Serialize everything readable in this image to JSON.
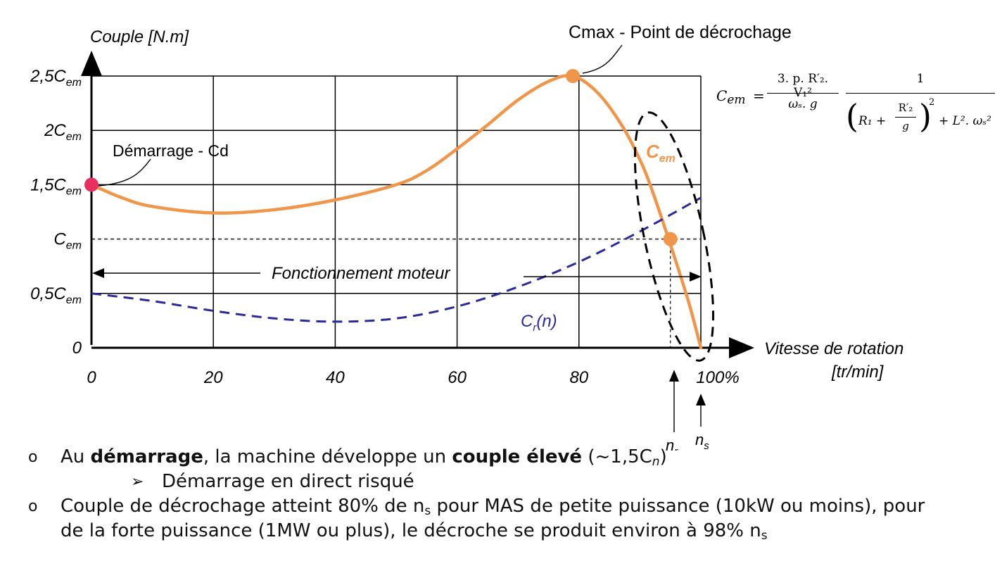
{
  "chart_data": {
    "type": "line",
    "ylabel": "Couple [N.m]",
    "xlabel_line1": "Vitesse de rotation",
    "xlabel_line2": "[tr/min]",
    "x_ticks": [
      "0",
      "20",
      "40",
      "60",
      "80",
      "100%"
    ],
    "y_tick_labels": [
      {
        "main": "0",
        "sub": ""
      },
      {
        "main": "0,5C",
        "sub": "em"
      },
      {
        "main": "C",
        "sub": "em"
      },
      {
        "main": "1,5C",
        "sub": "em"
      },
      {
        "main": "2C",
        "sub": "em"
      },
      {
        "main": "2,5C",
        "sub": "em"
      }
    ],
    "xlim": [
      0,
      100
    ],
    "ylim": [
      0,
      2.5
    ],
    "grid": true,
    "series": [
      {
        "label_main": "C",
        "label_sub": "em",
        "color": "#f0964a",
        "style": "solid",
        "x": [
          0,
          5,
          10,
          20,
          30,
          40,
          50,
          55,
          60,
          65,
          70,
          75,
          79,
          83,
          87,
          90,
          92,
          95,
          98,
          100
        ],
        "y": [
          1.5,
          1.38,
          1.3,
          1.24,
          1.27,
          1.36,
          1.5,
          1.63,
          1.83,
          2.05,
          2.28,
          2.45,
          2.5,
          2.35,
          2.05,
          1.73,
          1.45,
          0.95,
          0.42,
          0.0
        ]
      },
      {
        "label_main": "C",
        "label_sub": "r",
        "label_suffix": "(n)",
        "color": "#2a2a9c",
        "style": "dashed",
        "x": [
          0,
          10,
          20,
          30,
          40,
          50,
          60,
          70,
          80,
          90,
          100
        ],
        "y": [
          0.5,
          0.43,
          0.34,
          0.27,
          0.24,
          0.27,
          0.38,
          0.56,
          0.79,
          1.07,
          1.38
        ]
      }
    ],
    "points": [
      {
        "x": 0,
        "y": 1.5,
        "color": "#e8305e"
      },
      {
        "x": 79,
        "y": 2.5,
        "color": "#f0964a"
      },
      {
        "x": 95,
        "y": 1.0,
        "color": "#f0964a"
      }
    ],
    "cem_level": 1.0,
    "annotations": {
      "cmax": "Cmax - Point de décrochage",
      "demarrage": "Démarrage - Cd",
      "fonctionnement": "Fonctionnement moteur",
      "nr_main": "n",
      "nr_sub": "r",
      "ns_main": "n",
      "ns_sub": "s"
    }
  },
  "formula": {
    "lhs_main": "C",
    "lhs_sub": "em",
    "eq": "=",
    "num1": "3. p. R′₂. V₁²",
    "den1": "ωₛ. g",
    "num2": "1",
    "den2_a": "R₁ +",
    "den2_frac_num": "R′₂",
    "den2_frac_den": "g",
    "den2_pow": "2",
    "den2_b": "+ L². ωₛ²"
  },
  "bullets": {
    "b1_pre": "Au ",
    "b1_bold1": "démarrage",
    "b1_mid": ", la machine développe un ",
    "b1_bold2": "couple élevé",
    "b1_post": " (~1,5C",
    "b1_sub": "n",
    "b1_end": ")",
    "b1_sub_item": "Démarrage en direct risqué",
    "b2_line1": "Couple de décrochage atteint 80% de n",
    "b2_sub1": "s",
    "b2_line1_rest": " pour MAS de petite puissance (10kW ou moins), pour",
    "b2_line2": "de la forte puissance (1MW ou plus), le décroche se produit environ à 98% n",
    "b2_sub2": "s"
  }
}
